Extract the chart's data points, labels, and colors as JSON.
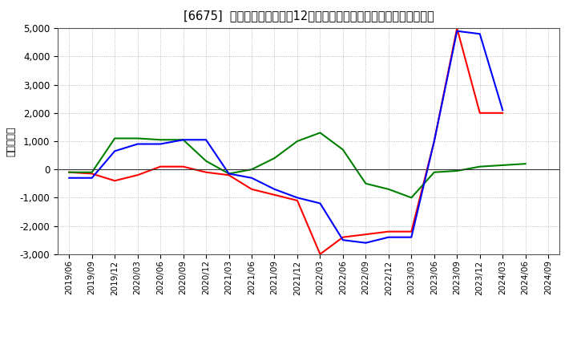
{
  "title": "[6675]  キャッシュフローの12か月移動合計の対前年同期増減額の推移",
  "ylabel": "（百万円）",
  "x_labels": [
    "2019/06",
    "2019/09",
    "2019/12",
    "2020/03",
    "2020/06",
    "2020/09",
    "2020/12",
    "2021/03",
    "2021/06",
    "2021/09",
    "2021/12",
    "2022/03",
    "2022/06",
    "2022/09",
    "2022/12",
    "2023/03",
    "2023/06",
    "2023/09",
    "2023/12",
    "2024/03",
    "2024/06",
    "2024/09"
  ],
  "operating_cf": [
    -100,
    -150,
    -400,
    -200,
    100,
    100,
    -100,
    -200,
    -700,
    -900,
    -1100,
    -3000,
    -2400,
    -2300,
    -2200,
    -2200,
    1000,
    5000,
    2000,
    2000,
    null,
    null
  ],
  "investing_cf": [
    -100,
    -100,
    1100,
    1100,
    1050,
    1050,
    300,
    -150,
    0,
    400,
    1000,
    1300,
    700,
    -500,
    -700,
    -1000,
    -100,
    -50,
    100,
    150,
    200,
    null
  ],
  "free_cf": [
    -300,
    -300,
    650,
    900,
    900,
    1050,
    1050,
    -150,
    -300,
    -700,
    -1000,
    -1200,
    -2500,
    -2600,
    -2400,
    -2400,
    1000,
    4900,
    4800,
    2100,
    null,
    null
  ],
  "ylim": [
    -3000,
    5000
  ],
  "yticks": [
    -3000,
    -2000,
    -1000,
    0,
    1000,
    2000,
    3000,
    4000,
    5000
  ],
  "operating_color": "#ff0000",
  "investing_color": "#008000",
  "free_color": "#0000ff",
  "line_width": 1.5
}
